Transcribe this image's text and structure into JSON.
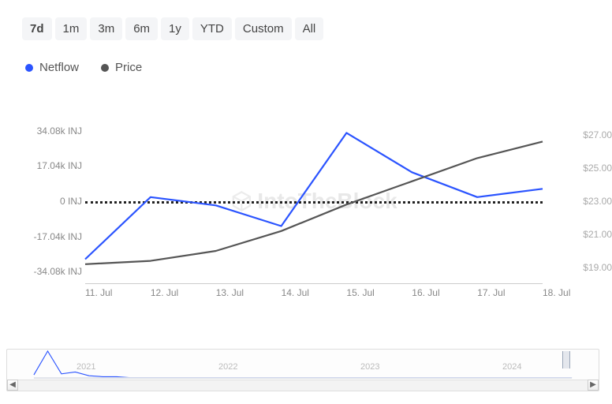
{
  "range_selector": {
    "options": [
      "7d",
      "1m",
      "3m",
      "6m",
      "1y",
      "YTD",
      "Custom",
      "All"
    ],
    "active": "7d"
  },
  "legend": {
    "items": [
      {
        "label": "Netflow",
        "color": "#2b54ff"
      },
      {
        "label": "Price",
        "color": "#555555"
      }
    ]
  },
  "chart": {
    "type": "line",
    "background_color": "#ffffff",
    "watermark_text": "IntoTheBlock",
    "watermark_color": "#ececec",
    "left_axis": {
      "unit": "INJ",
      "min": -40,
      "max": 40,
      "ticks": [
        {
          "v": 34.08,
          "label": "34.08k INJ"
        },
        {
          "v": 17.04,
          "label": "17.04k INJ"
        },
        {
          "v": 0,
          "label": "0 INJ"
        },
        {
          "v": -17.04,
          "label": "-17.04k INJ"
        },
        {
          "v": -34.08,
          "label": "-34.08k INJ"
        }
      ],
      "label_color": "#888888",
      "fontsize": 12
    },
    "right_axis": {
      "unit": "$",
      "min": 18,
      "max": 28,
      "ticks": [
        {
          "v": 27,
          "label": "$27.00"
        },
        {
          "v": 25,
          "label": "$25.00"
        },
        {
          "v": 23,
          "label": "$23.00"
        },
        {
          "v": 21,
          "label": "$21.00"
        },
        {
          "v": 19,
          "label": "$19.00"
        }
      ],
      "label_color": "#aaaaaa",
      "fontsize": 12
    },
    "x_axis": {
      "ticks": [
        "11. Jul",
        "12. Jul",
        "13. Jul",
        "14. Jul",
        "15. Jul",
        "16. Jul",
        "17. Jul",
        "18. Jul"
      ],
      "label_color": "#888888",
      "fontsize": 12
    },
    "zero_line": {
      "color": "#222222",
      "style": "dotted",
      "width": 3
    },
    "series": [
      {
        "name": "Netflow",
        "axis": "left",
        "color": "#2b54ff",
        "line_width": 2.2,
        "y": [
          -28,
          2,
          -2,
          -12,
          33,
          14,
          2,
          6
        ]
      },
      {
        "name": "Price",
        "axis": "right",
        "color": "#555555",
        "line_width": 2.2,
        "y": [
          19.2,
          19.4,
          20.0,
          21.2,
          22.8,
          24.2,
          25.6,
          26.6
        ]
      }
    ]
  },
  "navigator": {
    "years": [
      "2021",
      "2022",
      "2023",
      "2024"
    ],
    "year_color": "#bbbbbb",
    "spark": {
      "color": "#2b54ff",
      "y": [
        5,
        30,
        6,
        8,
        4,
        3,
        3,
        2,
        2,
        2,
        2,
        2,
        2,
        2,
        2,
        2,
        2,
        2,
        2,
        2,
        2,
        2,
        2,
        2,
        2,
        2,
        2,
        2,
        2,
        2,
        2,
        2,
        2,
        2,
        2,
        2,
        2,
        2,
        2,
        2
      ]
    },
    "handle_pos": 0.955
  }
}
